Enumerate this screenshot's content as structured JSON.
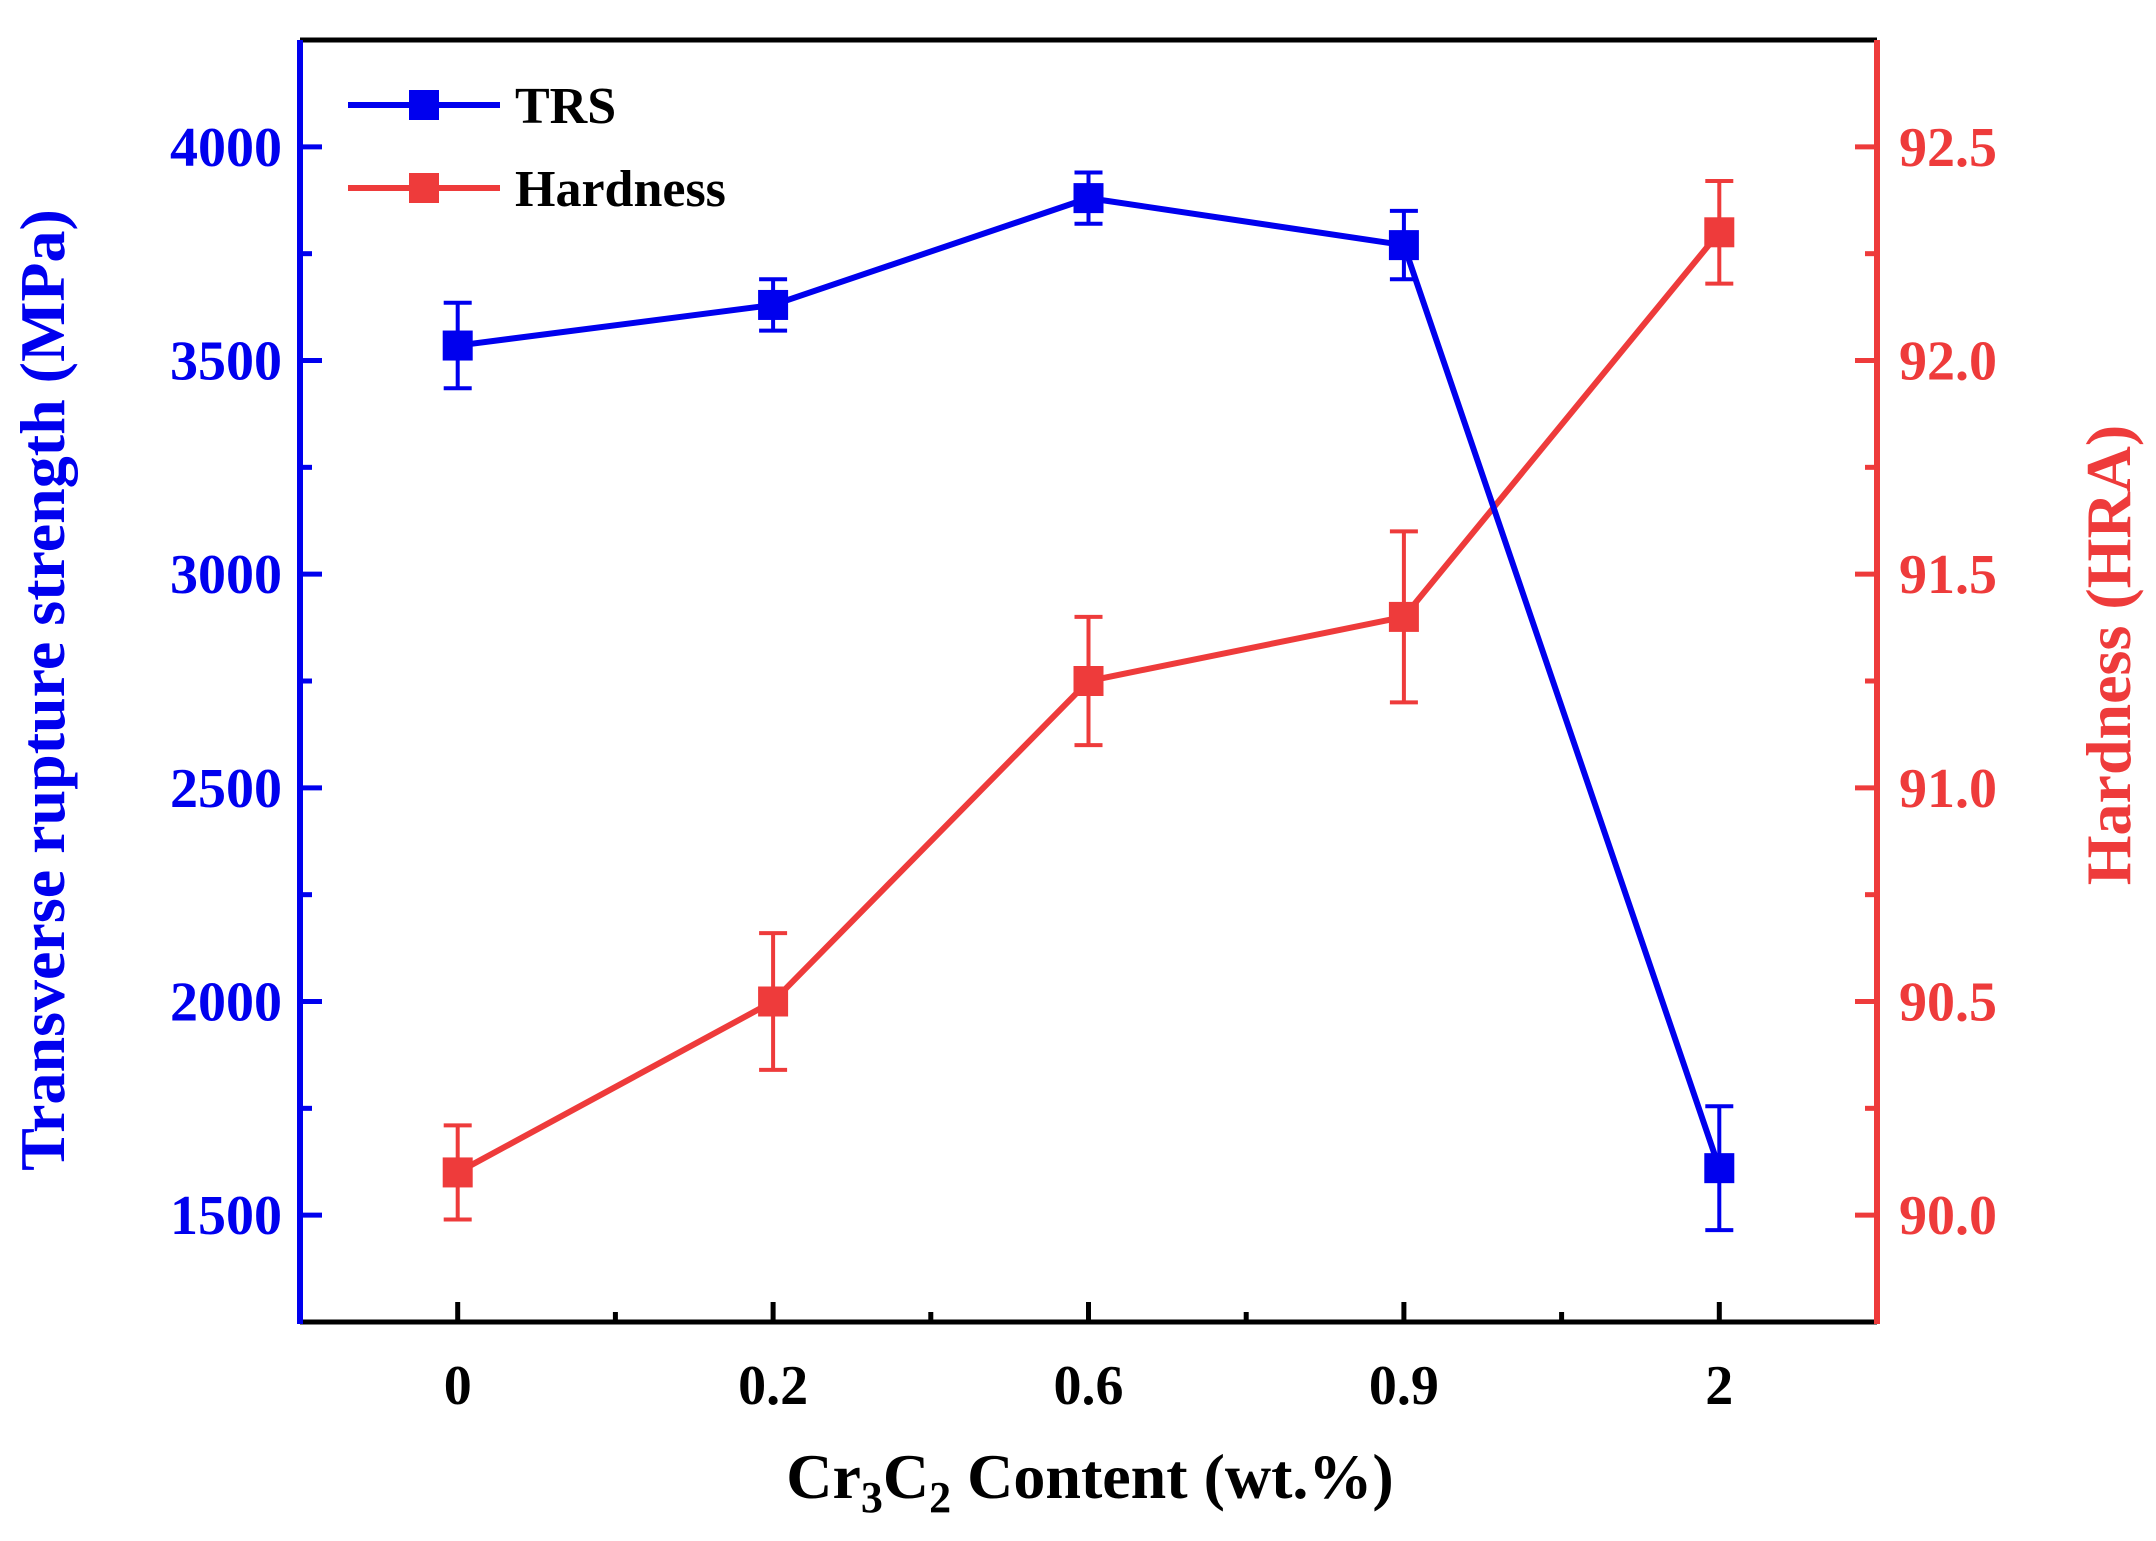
{
  "chart_data": {
    "type": "line",
    "categories": [
      "0",
      "0.2",
      "0.6",
      "0.9",
      "2"
    ],
    "xlabel": {
      "prefix": "Cr",
      "sub1": "3",
      "mid": "C",
      "sub2": "2",
      "suffix": " Content (wt.%)"
    },
    "left_axis": {
      "label": "Transverse rupture strength (MPa)",
      "ylim": [
        1250,
        4250
      ],
      "ticks": [
        1500,
        2000,
        2500,
        3000,
        3500,
        4000
      ],
      "minor_step": 250,
      "color": "#0000ee"
    },
    "right_axis": {
      "label": "Hardness (HRA)",
      "ylim": [
        89.75,
        92.75
      ],
      "ticks": [
        "90.0",
        "90.5",
        "91.0",
        "91.5",
        "92.0",
        "92.5"
      ],
      "minor_step": 0.25,
      "color": "#ee3b3b"
    },
    "series": [
      {
        "name": "TRS",
        "axis": "left",
        "color": "#0000ee",
        "values": [
          3535,
          3630,
          3880,
          3770,
          1610
        ],
        "errors": [
          100,
          60,
          60,
          80,
          145
        ]
      },
      {
        "name": "Hardness",
        "axis": "right",
        "color": "#ee3b3b",
        "values": [
          90.1,
          90.5,
          91.25,
          91.4,
          92.3
        ],
        "errors": [
          0.11,
          0.16,
          0.15,
          0.2,
          0.12
        ]
      }
    ],
    "legend_position": "top-left"
  }
}
